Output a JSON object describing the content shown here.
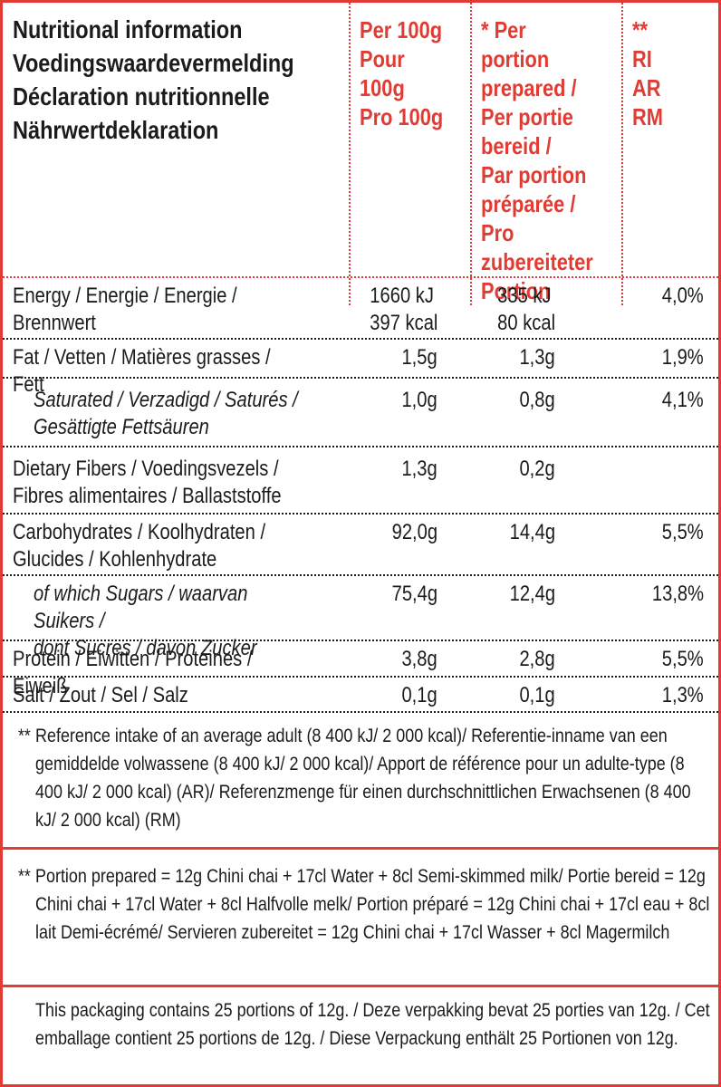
{
  "colors": {
    "accent_red": "#e23b33",
    "text_black": "#1b1b1b",
    "background": "#ffffff"
  },
  "header": {
    "title": "Nutritional information\nVoedingswaardevermelding\nDéclaration nutritionnelle\nNährwertdeklaration",
    "cols": [
      {
        "label": "Per 100g\nPour 100g\nPro 100g"
      },
      {
        "label": "* Per portion\nprepared /\nPer portie\nbereid /\nPar portion\npréparée /\nPro\nzubereiteter\nPortion"
      },
      {
        "label": "**\nRI\nAR\nRM"
      }
    ]
  },
  "table": {
    "rows": [
      {
        "label": "Energy / Energie / Energie /\nBrennwert",
        "per100g": "1660 kJ\n397 kcal",
        "portion": "335 kJ\n80 kcal",
        "ri": "4,0%"
      },
      {
        "label": "Fat / Vetten / Matières grasses / Fett",
        "per100g": "1,5g",
        "portion": "1,3g",
        "ri": "1,9%"
      },
      {
        "label": "Saturated / Verzadigd / Saturés /\nGesättigte Fettsäuren",
        "per100g": "1,0g",
        "portion": "0,8g",
        "ri": "4,1%"
      },
      {
        "label": "Dietary Fibers / Voedingsvezels /\nFibres alimentaires / Ballaststoffe",
        "per100g": "1,3g",
        "portion": "0,2g",
        "ri": ""
      },
      {
        "label": "Carbohydrates / Koolhydraten /\nGlucides / Kohlenhydrate",
        "per100g": "92,0g",
        "portion": "14,4g",
        "ri": "5,5%"
      },
      {
        "label": "of which Sugars / waarvan Suikers /\ndont Sucres / davon Zucker",
        "per100g": "75,4g",
        "portion": "12,4g",
        "ri": "13,8%"
      },
      {
        "label": "Protein / Eiwitten / Protéines / Eiweiß",
        "per100g": "3,8g",
        "portion": "2,8g",
        "ri": "5,5%"
      },
      {
        "label": "Salt / Zout / Sel / Salz",
        "per100g": "0,1g",
        "portion": "0,1g",
        "ri": "1,3%"
      }
    ]
  },
  "footnotes": [
    {
      "marker": "**",
      "text": "Reference intake of an average adult (8 400 kJ/ 2 000 kcal)/ Referentie-inname van een gemiddelde volwassene (8 400 kJ/ 2 000 kcal)/ Apport de référence pour un adulte-type (8 400 kJ/ 2 000 kcal) (AR)/ Referenzmenge für einen durchschnittlichen Erwachsenen (8 400 kJ/ 2 000 kcal) (RM)"
    },
    {
      "marker": "**",
      "text": "Portion prepared = 12g Chini chai + 17cl Water + 8cl Semi-skimmed milk/ Portie bereid = 12g Chini chai + 17cl Water + 8cl Halfvolle melk/ Portion préparé = 12g Chini chai + 17cl eau + 8cl lait Demi-écrémé/ Servieren zubereitet = 12g Chini chai + 17cl Wasser + 8cl Magermilch"
    }
  ],
  "packaging_note": {
    "text": "This packaging contains 25 portions of 12g. / Deze verpakking bevat 25 porties van 12g. / Cet emballage contient 25 portions de 12g. / Diese Verpackung enthält 25 Portionen von 12g."
  }
}
